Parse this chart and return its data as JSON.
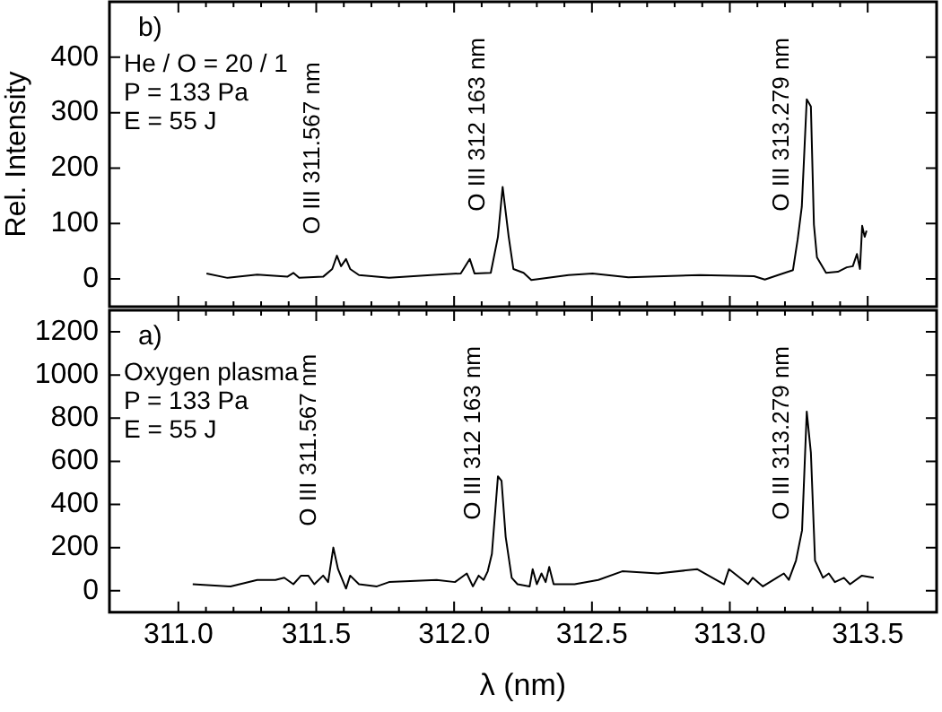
{
  "chart_data": [
    {
      "type": "line",
      "ylabel": "Rel. Intensity",
      "tick_labels": "y",
      "legend": false,
      "grid": false,
      "marker": "none",
      "line_style": "solid",
      "xlim": [
        310.75,
        313.75
      ],
      "xticks": [
        311,
        311.5,
        312,
        312.5,
        313,
        313.5
      ],
      "ylim": [
        -50,
        500
      ],
      "yticks": [
        0,
        100,
        200,
        300,
        400
      ],
      "series": [
        {
          "color": "#000000",
          "x": [
            311.102,
            311.178,
            311.286,
            311.395,
            311.417,
            311.438,
            311.525,
            311.558,
            311.575,
            311.59,
            311.608,
            311.623,
            311.655,
            311.764,
            311.916,
            312.024,
            312.057,
            312.074,
            312.133,
            312.159,
            312.176,
            312.198,
            312.215,
            312.252,
            312.28,
            312.415,
            312.502,
            312.632,
            312.892,
            313.088,
            313.127,
            313.175,
            313.229,
            313.246,
            313.261,
            313.279,
            313.294,
            313.305,
            313.316,
            313.349,
            313.392,
            313.424,
            313.446,
            313.461,
            313.472,
            313.48,
            313.489,
            313.496
          ],
          "values": [
            10,
            2,
            8,
            4,
            11,
            2,
            4,
            18,
            42,
            23,
            36,
            18,
            7,
            2,
            7,
            10,
            36,
            10,
            11,
            76,
            166,
            76,
            18,
            11,
            -2,
            7,
            10,
            3,
            7,
            5,
            -1,
            7,
            16,
            71,
            130,
            324,
            311,
            98,
            39,
            11,
            13,
            21,
            23,
            45,
            18,
            96,
            76,
            87
          ]
        }
      ],
      "annotations": [
        "b)",
        "He / O = 20 / 1",
        "P = 133 Pa",
        "E = 55 J",
        {
          "text": "O III 311.567 nm",
          "x": 311.575,
          "y": 42
        },
        {
          "text": "O III 312 163 nm",
          "x": 312.176,
          "y": 166
        },
        {
          "text": "O III 313.279 nm",
          "x": 313.279,
          "y": 324
        }
      ]
    },
    {
      "type": "line",
      "xlabel": "λ (nm)",
      "legend": false,
      "grid": false,
      "marker": "none",
      "line_style": "solid",
      "xlim": [
        310.75,
        313.75
      ],
      "xticks": [
        {
          "value": 311,
          "label": "311.0"
        },
        {
          "value": 311.5,
          "label": "311.5"
        },
        {
          "value": 312,
          "label": "312.0"
        },
        {
          "value": 312.5,
          "label": "312.5"
        },
        {
          "value": 313,
          "label": "313.0"
        },
        {
          "value": 313.5,
          "label": "313.5"
        }
      ],
      "ylim": [
        -100,
        1300
      ],
      "yticks": [
        0,
        200,
        400,
        600,
        800,
        1000,
        1200
      ],
      "series": [
        {
          "color": "#000000",
          "x": [
            311.052,
            311.189,
            311.286,
            311.352,
            311.384,
            311.417,
            311.445,
            311.471,
            311.493,
            311.525,
            311.543,
            311.562,
            311.579,
            311.608,
            311.623,
            311.655,
            311.72,
            311.764,
            311.937,
            312.003,
            312.046,
            312.068,
            312.089,
            312.107,
            312.122,
            312.137,
            312.159,
            312.172,
            312.187,
            312.209,
            312.23,
            312.274,
            312.285,
            312.3,
            312.317,
            312.332,
            312.345,
            312.361,
            312.437,
            312.523,
            312.61,
            312.74,
            312.881,
            312.979,
            312.997,
            313.066,
            313.083,
            313.12,
            313.17,
            313.196,
            313.214,
            313.24,
            313.262,
            313.279,
            313.294,
            313.309,
            313.338,
            313.359,
            313.381,
            313.414,
            313.436,
            313.479,
            313.522
          ],
          "values": [
            30,
            20,
            50,
            50,
            60,
            30,
            70,
            70,
            30,
            70,
            40,
            200,
            100,
            10,
            70,
            30,
            20,
            40,
            50,
            40,
            80,
            20,
            70,
            50,
            90,
            170,
            530,
            510,
            250,
            60,
            30,
            20,
            100,
            30,
            80,
            40,
            110,
            30,
            30,
            50,
            90,
            80,
            100,
            30,
            100,
            30,
            60,
            20,
            60,
            80,
            50,
            140,
            280,
            830,
            640,
            140,
            60,
            80,
            40,
            60,
            30,
            70,
            60
          ]
        }
      ],
      "annotations": [
        "a)",
        "Oxygen plasma",
        "P = 133 Pa",
        "E = 55 J",
        {
          "text": "O III 311.567 nm",
          "x": 311.562,
          "y": 200
        },
        {
          "text": "O III 312 163 nm",
          "x": 312.159,
          "y": 530
        },
        {
          "text": "O III 313.279 nm",
          "x": 313.279,
          "y": 830
        }
      ]
    }
  ]
}
